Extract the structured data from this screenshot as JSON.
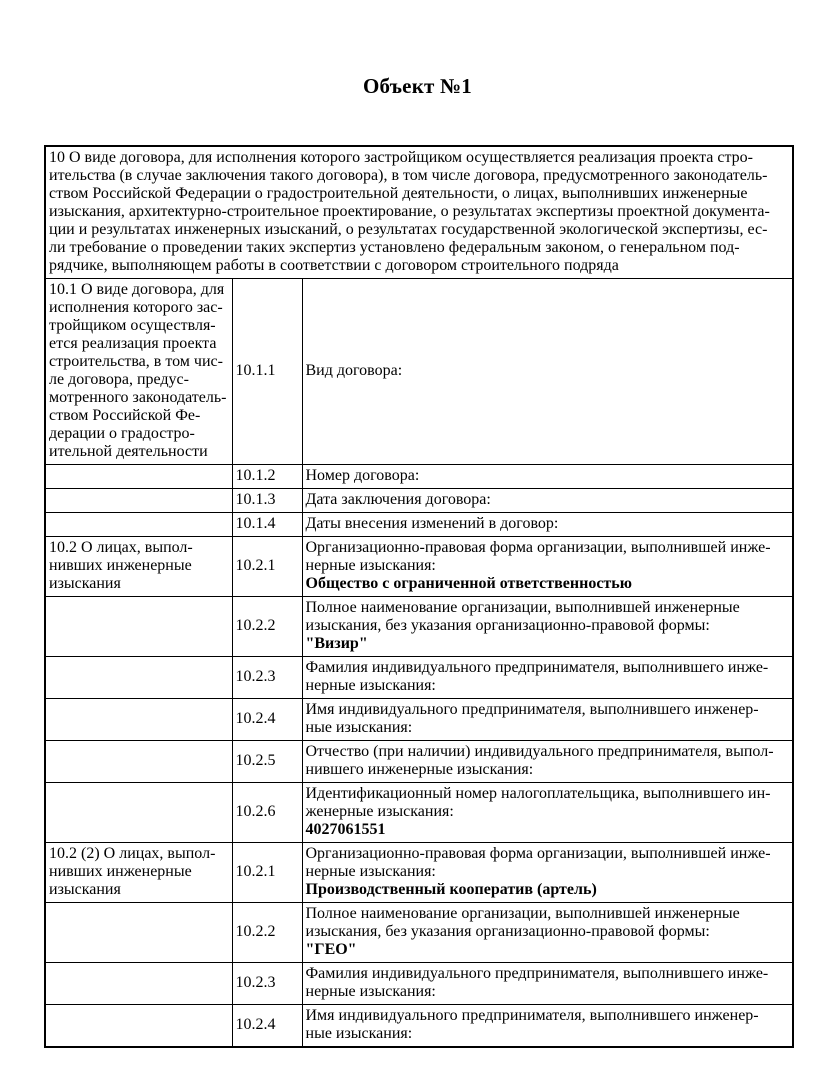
{
  "page": {
    "title": "Объект №1"
  },
  "table": {
    "section_header": "10 О виде договора, для исполнения которого застройщиком осуществляется реализация проекта стро-\nительства (в случае заключения такого договора), в том числе договора, предусмотренного законодатель-\nством Российской Федерации о градостроительной деятельности, о лицах, выполнивших инженерные\nизыскания, архитектурно-строительное проектирование, о результатах экспертизы проектной документа-\nции и результатах инженерных изысканий, о результатах государственной экологической экспертизы, ес-\nли требование о проведении таких экспертиз установлено федеральным законом, о генеральном под-\nрядчике, выполняющем работы в соответствии с договором строительного подряда",
    "rows": [
      {
        "left": "10.1 О виде договора, для\nисполнения которого зас-\nтройщиком осуществля-\nется реализация проекта\nстроительства, в том чис-\nле договора, предус-\nмотренного законодатель-\nством Российской Фе-\nдерации о градостро-\nительной деятельности",
        "code": "10.1.1",
        "label": "Вид договора:",
        "value": ""
      },
      {
        "left": "",
        "code": "10.1.2",
        "label": "Номер договора:",
        "value": ""
      },
      {
        "left": "",
        "code": "10.1.3",
        "label": "Дата заключения договора:",
        "value": ""
      },
      {
        "left": "",
        "code": "10.1.4",
        "label": "Даты внесения изменений в договор:",
        "value": ""
      },
      {
        "left": "10.2 О лицах, выпол-\nнивших инженерные\nизыскания",
        "code": "10.2.1",
        "label": "Организационно-правовая форма организации, выполнившей инже-\nнерные изыскания:",
        "value": "Общество с ограниченной ответственностью"
      },
      {
        "left": "",
        "code": "10.2.2",
        "label": "Полное наименование организации, выполнившей инженерные\nизыскания, без указания организационно-правовой формы:",
        "value": "\"Визир\""
      },
      {
        "left": "",
        "code": "10.2.3",
        "label": "Фамилия индивидуального предпринимателя, выполнившего инже-\nнерные изыскания:",
        "value": ""
      },
      {
        "left": "",
        "code": "10.2.4",
        "label": "Имя индивидуального предпринимателя, выполнившего инженер-\nные изыскания:",
        "value": ""
      },
      {
        "left": "",
        "code": "10.2.5",
        "label": "Отчество (при наличии) индивидуального предпринимателя, выпол-\nнившего инженерные изыскания:",
        "value": ""
      },
      {
        "left": "",
        "code": "10.2.6",
        "label": "Идентификационный номер налогоплательщика, выполнившего ин-\nженерные изыскания:",
        "value": "4027061551"
      },
      {
        "left": "10.2 (2) О лицах, выпол-\nнивших инженерные\nизыскания",
        "code": "10.2.1",
        "label": "Организационно-правовая форма организации, выполнившей инже-\nнерные изыскания:",
        "value": "Производственный кооператив (артель)"
      },
      {
        "left": "",
        "code": "10.2.2",
        "label": "Полное наименование организации, выполнившей инженерные\nизыскания, без указания организационно-правовой формы:",
        "value": "\"ГЕО\""
      },
      {
        "left": "",
        "code": "10.2.3",
        "label": "Фамилия индивидуального предпринимателя, выполнившего инже-\nнерные изыскания:",
        "value": ""
      },
      {
        "left": "",
        "code": "10.2.4",
        "label": "Имя индивидуального предпринимателя, выполнившего инженер-\nные изыскания:",
        "value": ""
      }
    ]
  }
}
